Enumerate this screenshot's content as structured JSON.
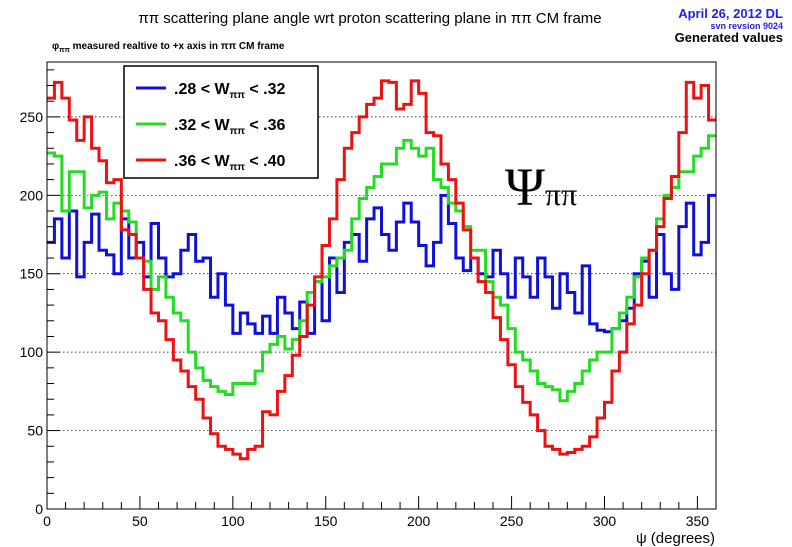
{
  "header": {
    "title": "ππ scattering plane angle wrt proton scattering plane in ππ CM frame",
    "stamp_date": "April 26, 2012 DL",
    "stamp_revision": "svn revsion 9024",
    "stamp_label": "Generated values",
    "subtitle": "φππ measured realtive to +x axis in ππ CM frame"
  },
  "annotation": "Ψππ",
  "colors": {
    "blue": "#1010dd",
    "green": "#22dd22",
    "red": "#ee1111",
    "frame": "#000000",
    "grid": "#000000"
  },
  "chart_data": {
    "type": "line",
    "step": true,
    "xlabel": "ψ (degrees)",
    "ylabel": "",
    "xlim": [
      0,
      360
    ],
    "ylim": [
      0,
      285
    ],
    "xticks": [
      0,
      50,
      100,
      150,
      200,
      250,
      300,
      350
    ],
    "yticks": [
      0,
      50,
      100,
      150,
      200,
      250
    ],
    "grid": "horizontal-dotted",
    "legend": "top-left",
    "bin_width": 4,
    "series": [
      {
        "name": ".28 < Wππ < .32",
        "color": "#1010dd",
        "values": [
          170,
          185,
          160,
          190,
          148,
          170,
          188,
          165,
          162,
          150,
          185,
          160,
          170,
          148,
          182,
          160,
          148,
          150,
          165,
          175,
          158,
          160,
          135,
          150,
          130,
          112,
          125,
          118,
          112,
          123,
          112,
          135,
          125,
          115,
          132,
          112,
          145,
          120,
          160,
          138,
          170,
          175,
          158,
          185,
          192,
          175,
          165,
          183,
          195,
          183,
          168,
          155,
          170,
          200,
          182,
          160,
          152,
          160,
          150,
          148,
          165,
          150,
          135,
          160,
          148,
          135,
          160,
          148,
          128,
          150,
          138,
          125,
          155,
          118,
          114,
          113,
          115,
          120,
          128,
          150,
          158,
          135,
          175,
          150,
          140,
          180,
          195,
          162,
          170,
          200
        ]
      },
      {
        "name": ".32 < Wππ < .36",
        "color": "#22dd22",
        "values": [
          227,
          225,
          190,
          215,
          215,
          192,
          200,
          202,
          185,
          195,
          190,
          183,
          160,
          158,
          140,
          148,
          135,
          125,
          120,
          100,
          90,
          82,
          78,
          75,
          73,
          80,
          80,
          80,
          88,
          100,
          105,
          110,
          102,
          108,
          120,
          138,
          145,
          148,
          155,
          160,
          165,
          185,
          198,
          205,
          212,
          220,
          220,
          230,
          235,
          230,
          225,
          230,
          210,
          205,
          195,
          190,
          180,
          165,
          165,
          145,
          135,
          130,
          115,
          100,
          95,
          88,
          80,
          78,
          76,
          69,
          75,
          80,
          88,
          95,
          100,
          100,
          115,
          125,
          135,
          148,
          160,
          165,
          185,
          200,
          205,
          215,
          215,
          225,
          230,
          238
        ]
      },
      {
        "name": ".36 < Wππ < .40",
        "color": "#ee1111",
        "values": [
          262,
          272,
          262,
          248,
          235,
          250,
          230,
          222,
          208,
          210,
          178,
          175,
          160,
          140,
          125,
          120,
          108,
          95,
          88,
          78,
          70,
          58,
          48,
          40,
          38,
          35,
          32,
          38,
          40,
          62,
          60,
          75,
          85,
          98,
          110,
          130,
          148,
          168,
          185,
          210,
          230,
          240,
          250,
          258,
          262,
          273,
          272,
          255,
          258,
          273,
          265,
          240,
          238,
          220,
          210,
          195,
          178,
          160,
          145,
          138,
          122,
          108,
          92,
          78,
          68,
          60,
          50,
          40,
          38,
          35,
          36,
          38,
          40,
          46,
          58,
          68,
          88,
          100,
          118,
          130,
          150,
          165,
          180,
          198,
          212,
          240,
          272,
          262,
          270,
          248
        ]
      }
    ]
  }
}
